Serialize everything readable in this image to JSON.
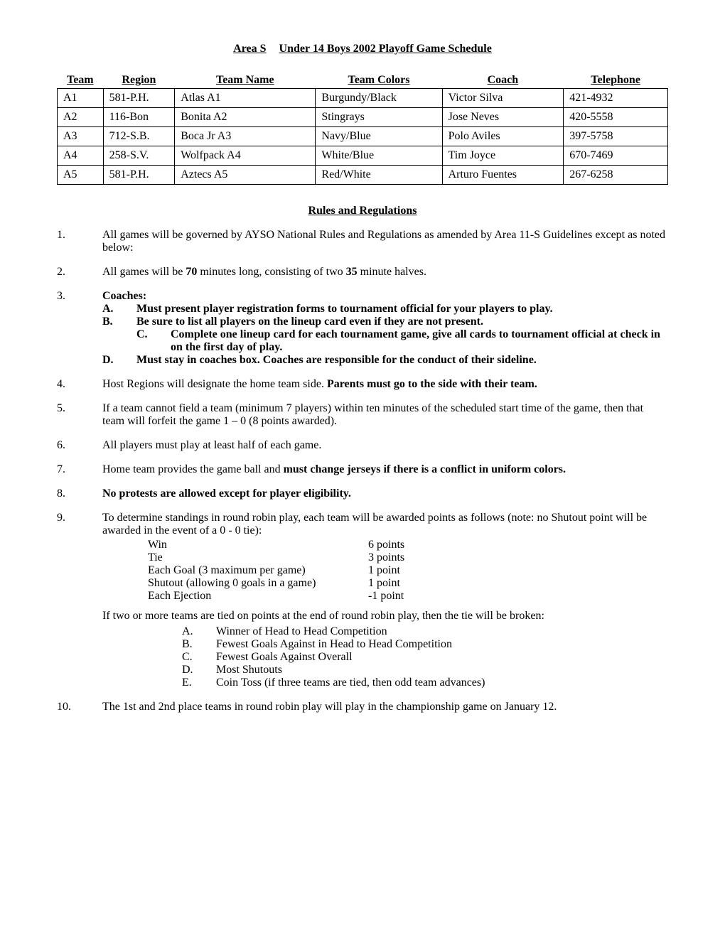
{
  "title_left": "Area S",
  "title_right": "Under 14 Boys 2002 Playoff Game Schedule",
  "table": {
    "headers": [
      "Team",
      "Region",
      "Team Name",
      "Team Colors",
      "Coach",
      "Telephone"
    ],
    "rows": [
      [
        "A1",
        "581-P.H.",
        "Atlas A1",
        "Burgundy/Black",
        "Victor Silva",
        "421-4932"
      ],
      [
        "A2",
        "116-Bon",
        "Bonita A2",
        "Stingrays",
        "Jose Neves",
        "420-5558"
      ],
      [
        "A3",
        "712-S.B.",
        "Boca Jr A3",
        "Navy/Blue",
        "Polo Aviles",
        "397-5758"
      ],
      [
        "A4",
        "258-S.V.",
        "Wolfpack A4",
        "White/Blue",
        "Tim Joyce",
        "670-7469"
      ],
      [
        "A5",
        "581-P.H.",
        "Aztecs A5",
        "Red/White",
        "Arturo Fuentes",
        "267-6258"
      ]
    ]
  },
  "rules_title": "Rules and Regulations",
  "rules": {
    "r1": "All games will be governed by AYSO National Rules and Regulations as amended by Area 11-S Guidelines except as noted below:",
    "r2_a": "All games will be ",
    "r2_b": "70",
    "r2_c": " minutes long, consisting of two ",
    "r2_d": "35",
    "r2_e": " minute halves.",
    "r3_head": "Coaches:",
    "r3_A": "Must present player registration forms to tournament official for your players to play.",
    "r3_B": "Be sure to list all players on the lineup card even if they are not present.",
    "r3_C": "Complete one lineup card for each tournament game, give all cards to tournament official at check in on the first day of play.",
    "r3_D": "Must stay in coaches box.  Coaches are responsible for the conduct of their sideline.",
    "r4_a": "Host Regions will designate the home team side.  ",
    "r4_b": "Parents must go to the side with their team.",
    "r5": "If a team cannot field a team (minimum 7 players) within ten minutes of the scheduled start time of the game, then that team will forfeit the game 1 – 0 (8 points awarded).",
    "r6": "All players must play at least half of each game.",
    "r7_a": "Home team provides the game ball and ",
    "r7_b": "must change jerseys if there is a conflict in uniform colors.",
    "r8": "No protests are allowed except for player eligibility.",
    "r9_intro": "To determine standings in round robin play, each team will be awarded points as follows (note: no Shutout point will be awarded in the event of a 0 - 0 tie):",
    "points": [
      [
        "Win",
        "6 points"
      ],
      [
        "Tie",
        "3 points"
      ],
      [
        "Each Goal (3 maximum per game)",
        "1 point"
      ],
      [
        "Shutout (allowing 0 goals in a game)",
        "1 point"
      ],
      [
        "Each Ejection",
        "-1 point"
      ]
    ],
    "r9_tie_intro": "If two or more teams are tied on points at the end of round robin play, then the tie will be broken:",
    "tiebreak": [
      [
        "A.",
        "Winner of Head to Head Competition"
      ],
      [
        "B.",
        "Fewest Goals Against in Head to Head Competition"
      ],
      [
        "C.",
        "Fewest Goals Against Overall"
      ],
      [
        "D.",
        "Most Shutouts"
      ],
      [
        "E.",
        "Coin Toss (if three teams are tied, then odd team advances)"
      ]
    ],
    "r10": "The 1st and 2nd place teams in round robin play will play in the championship game on January 12."
  }
}
